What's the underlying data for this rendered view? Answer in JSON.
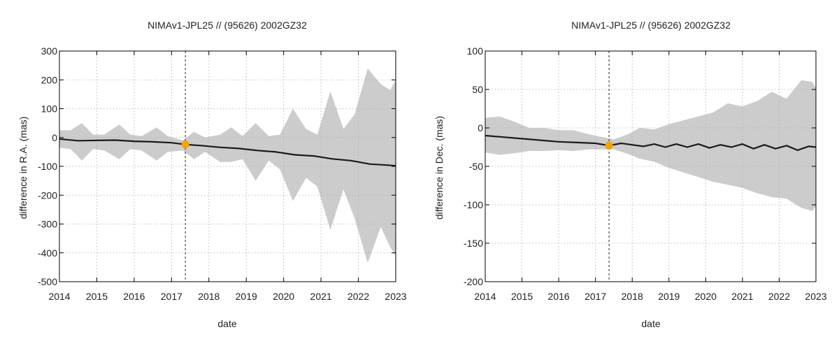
{
  "chart_data": [
    {
      "type": "line",
      "title": "NIMAv1-JPL25 // (95626) 2002GZ32",
      "xlabel": "date",
      "ylabel": "difference in R.A. (mas)",
      "xlim": [
        2014,
        2023
      ],
      "ylim": [
        -500,
        300
      ],
      "xticks": [
        2014,
        2015,
        2016,
        2017,
        2018,
        2019,
        2020,
        2021,
        2022,
        2023
      ],
      "yticks": [
        300,
        200,
        100,
        0,
        -100,
        -200,
        -300,
        -400,
        -500
      ],
      "grid": true,
      "vline_x": 2017.37,
      "marker": {
        "x": 2017.37,
        "y": -24
      },
      "series": [
        {
          "name": "difference",
          "kind": "line",
          "x": [
            2014.0,
            2014.5,
            2015.0,
            2015.5,
            2016.0,
            2016.5,
            2017.0,
            2017.37,
            2017.8,
            2018.3,
            2018.8,
            2019.3,
            2019.8,
            2020.3,
            2020.8,
            2021.3,
            2021.8,
            2022.3,
            2022.8,
            2023.0
          ],
          "y": [
            -5,
            -11,
            -10,
            -9,
            -13,
            -15,
            -18,
            -24,
            -28,
            -34,
            -38,
            -45,
            -50,
            -60,
            -64,
            -74,
            -80,
            -92,
            -96,
            -98
          ]
        },
        {
          "name": "uncertainty band",
          "kind": "band",
          "x": [
            2014.0,
            2014.3,
            2014.6,
            2014.9,
            2015.2,
            2015.6,
            2015.9,
            2016.2,
            2016.6,
            2016.9,
            2017.3,
            2017.6,
            2017.9,
            2018.3,
            2018.6,
            2018.9,
            2019.25,
            2019.6,
            2019.9,
            2020.25,
            2020.6,
            2020.9,
            2021.25,
            2021.6,
            2021.9,
            2022.25,
            2022.6,
            2022.85,
            2023.0
          ],
          "upper": [
            25,
            25,
            50,
            10,
            10,
            45,
            10,
            5,
            35,
            5,
            -10,
            20,
            0,
            10,
            35,
            5,
            50,
            5,
            10,
            100,
            30,
            10,
            160,
            30,
            80,
            240,
            185,
            165,
            200
          ],
          "lower": [
            -35,
            -40,
            -80,
            -40,
            -45,
            -75,
            -40,
            -45,
            -80,
            -50,
            -45,
            -75,
            -50,
            -85,
            -85,
            -75,
            -150,
            -80,
            -110,
            -220,
            -140,
            -170,
            -320,
            -180,
            -280,
            -435,
            -310,
            -380,
            -410
          ]
        }
      ]
    },
    {
      "type": "line",
      "title": "NIMAv1-JPL25 // (95626) 2002GZ32",
      "xlabel": "date",
      "ylabel": "difference in Dec. (mas)",
      "xlim": [
        2014,
        2023
      ],
      "ylim": [
        -200,
        100
      ],
      "xticks": [
        2014,
        2015,
        2016,
        2017,
        2018,
        2019,
        2020,
        2021,
        2022,
        2023
      ],
      "yticks": [
        100,
        50,
        0,
        -50,
        -100,
        -150,
        -200
      ],
      "grid": true,
      "vline_x": 2017.37,
      "marker": {
        "x": 2017.37,
        "y": -23
      },
      "series": [
        {
          "name": "difference",
          "kind": "line",
          "x": [
            2014.0,
            2014.5,
            2015.0,
            2015.5,
            2016.0,
            2016.5,
            2017.0,
            2017.37,
            2017.7,
            2018.0,
            2018.3,
            2018.6,
            2018.9,
            2019.2,
            2019.5,
            2019.8,
            2020.1,
            2020.4,
            2020.7,
            2021.0,
            2021.3,
            2021.6,
            2021.9,
            2022.2,
            2022.5,
            2022.8,
            2023.0
          ],
          "y": [
            -10,
            -12,
            -14,
            -16,
            -18,
            -19,
            -20,
            -23,
            -20,
            -22,
            -24,
            -21,
            -25,
            -21,
            -25,
            -21,
            -26,
            -22,
            -25,
            -21,
            -27,
            -22,
            -27,
            -23,
            -29,
            -24,
            -25
          ]
        },
        {
          "name": "uncertainty band",
          "kind": "band",
          "x": [
            2014.0,
            2014.4,
            2014.8,
            2015.2,
            2015.6,
            2016.0,
            2016.4,
            2016.8,
            2017.2,
            2017.5,
            2017.9,
            2018.2,
            2018.6,
            2019.0,
            2019.4,
            2019.8,
            2020.2,
            2020.6,
            2021.0,
            2021.4,
            2021.8,
            2022.2,
            2022.6,
            2022.9,
            2023.0
          ],
          "upper": [
            13,
            15,
            8,
            0,
            0,
            -3,
            -3,
            -8,
            -12,
            -15,
            -8,
            0,
            -2,
            5,
            10,
            15,
            20,
            32,
            28,
            35,
            47,
            38,
            62,
            60,
            52
          ],
          "lower": [
            -32,
            -35,
            -33,
            -30,
            -30,
            -29,
            -30,
            -28,
            -28,
            -28,
            -34,
            -40,
            -44,
            -52,
            -58,
            -64,
            -70,
            -74,
            -78,
            -85,
            -90,
            -92,
            -104,
            -108,
            -102
          ]
        }
      ]
    }
  ]
}
